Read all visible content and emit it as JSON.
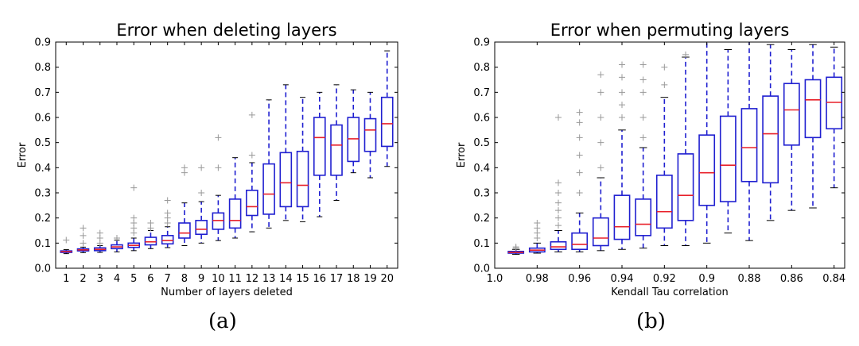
{
  "chart_data": [
    {
      "type": "box",
      "title": "Error when deleting layers",
      "xlabel": "Number of layers deleted",
      "ylabel": "Error",
      "ylim": [
        0.0,
        0.9
      ],
      "yticks": [
        "0.0",
        "0.1",
        "0.2",
        "0.3",
        "0.4",
        "0.5",
        "0.6",
        "0.7",
        "0.8",
        "0.9"
      ],
      "categories": [
        "1",
        "2",
        "3",
        "4",
        "5",
        "6",
        "7",
        "8",
        "9",
        "10",
        "11",
        "12",
        "13",
        "14",
        "15",
        "16",
        "17",
        "18",
        "19",
        "20"
      ],
      "colors": {
        "box": "#1f1fd0",
        "median": "#e8202a",
        "whisker": "#1f1fd0",
        "cap": "#000000",
        "flier": "#999999"
      },
      "boxes": [
        {
          "whislo": 0.058,
          "q1": 0.063,
          "med": 0.066,
          "q3": 0.069,
          "whishi": 0.074,
          "fliers": [
            0.112
          ]
        },
        {
          "whislo": 0.062,
          "q1": 0.069,
          "med": 0.073,
          "q3": 0.077,
          "whishi": 0.084,
          "fliers": [
            0.1,
            0.13,
            0.16
          ]
        },
        {
          "whislo": 0.063,
          "q1": 0.07,
          "med": 0.075,
          "q3": 0.081,
          "whishi": 0.09,
          "fliers": [
            0.1,
            0.12,
            0.14
          ]
        },
        {
          "whislo": 0.065,
          "q1": 0.078,
          "med": 0.085,
          "q3": 0.093,
          "whishi": 0.112,
          "fliers": [
            0.12
          ]
        },
        {
          "whislo": 0.07,
          "q1": 0.083,
          "med": 0.091,
          "q3": 0.1,
          "whishi": 0.12,
          "fliers": [
            0.14,
            0.16,
            0.18,
            0.2,
            0.32
          ]
        },
        {
          "whislo": 0.078,
          "q1": 0.093,
          "med": 0.105,
          "q3": 0.123,
          "whishi": 0.15,
          "fliers": [
            0.16,
            0.18
          ]
        },
        {
          "whislo": 0.082,
          "q1": 0.097,
          "med": 0.11,
          "q3": 0.13,
          "whishi": 0.165,
          "fliers": [
            0.18,
            0.2,
            0.22,
            0.27
          ]
        },
        {
          "whislo": 0.09,
          "q1": 0.12,
          "med": 0.14,
          "q3": 0.18,
          "whishi": 0.26,
          "fliers": [
            0.38,
            0.4
          ]
        },
        {
          "whislo": 0.1,
          "q1": 0.135,
          "med": 0.155,
          "q3": 0.19,
          "whishi": 0.265,
          "fliers": [
            0.3,
            0.4
          ]
        },
        {
          "whislo": 0.11,
          "q1": 0.155,
          "med": 0.19,
          "q3": 0.22,
          "whishi": 0.29,
          "fliers": [
            0.4,
            0.52
          ]
        },
        {
          "whislo": 0.12,
          "q1": 0.16,
          "med": 0.19,
          "q3": 0.275,
          "whishi": 0.44,
          "fliers": []
        },
        {
          "whislo": 0.145,
          "q1": 0.21,
          "med": 0.245,
          "q3": 0.31,
          "whishi": 0.42,
          "fliers": [
            0.45,
            0.61
          ]
        },
        {
          "whislo": 0.16,
          "q1": 0.215,
          "med": 0.295,
          "q3": 0.415,
          "whishi": 0.67,
          "fliers": []
        },
        {
          "whislo": 0.19,
          "q1": 0.245,
          "med": 0.34,
          "q3": 0.46,
          "whishi": 0.73,
          "fliers": []
        },
        {
          "whislo": 0.185,
          "q1": 0.245,
          "med": 0.33,
          "q3": 0.465,
          "whishi": 0.68,
          "fliers": []
        },
        {
          "whislo": 0.205,
          "q1": 0.37,
          "med": 0.52,
          "q3": 0.6,
          "whishi": 0.7,
          "fliers": []
        },
        {
          "whislo": 0.27,
          "q1": 0.37,
          "med": 0.49,
          "q3": 0.57,
          "whishi": 0.73,
          "fliers": []
        },
        {
          "whislo": 0.38,
          "q1": 0.425,
          "med": 0.515,
          "q3": 0.6,
          "whishi": 0.71,
          "fliers": []
        },
        {
          "whislo": 0.36,
          "q1": 0.465,
          "med": 0.55,
          "q3": 0.595,
          "whishi": 0.7,
          "fliers": []
        },
        {
          "whislo": 0.405,
          "q1": 0.485,
          "med": 0.575,
          "q3": 0.68,
          "whishi": 0.865,
          "fliers": []
        }
      ]
    },
    {
      "type": "box",
      "title": "Error when permuting layers",
      "xlabel": "Kendall Tau correlation",
      "ylabel": "Error",
      "ylim": [
        0.0,
        0.9
      ],
      "yticks": [
        "0.0",
        "0.1",
        "0.2",
        "0.3",
        "0.4",
        "0.5",
        "0.6",
        "0.7",
        "0.8",
        "0.9"
      ],
      "xlim": [
        1.0,
        0.835
      ],
      "xticks": [
        {
          "value": 1.0,
          "label": "1.0"
        },
        {
          "value": 0.98,
          "label": "0.98"
        },
        {
          "value": 0.96,
          "label": "0.96"
        },
        {
          "value": 0.94,
          "label": "0.94"
        },
        {
          "value": 0.92,
          "label": "0.92"
        },
        {
          "value": 0.9,
          "label": "0.9"
        },
        {
          "value": 0.88,
          "label": "0.88"
        },
        {
          "value": 0.86,
          "label": "0.86"
        },
        {
          "value": 0.84,
          "label": "0.84"
        }
      ],
      "colors": {
        "box": "#1f1fd0",
        "median": "#e8202a",
        "whisker": "#1f1fd0",
        "cap": "#000000",
        "flier": "#999999"
      },
      "boxes": [
        {
          "x": 0.99,
          "whislo": 0.055,
          "q1": 0.06,
          "med": 0.063,
          "q3": 0.067,
          "whishi": 0.075,
          "fliers": [
            0.08,
            0.085
          ]
        },
        {
          "x": 0.98,
          "whislo": 0.06,
          "q1": 0.065,
          "med": 0.072,
          "q3": 0.08,
          "whishi": 0.1,
          "fliers": [
            0.12,
            0.14,
            0.16,
            0.18
          ]
        },
        {
          "x": 0.97,
          "whislo": 0.065,
          "q1": 0.075,
          "med": 0.085,
          "q3": 0.105,
          "whishi": 0.15,
          "fliers": [
            0.17,
            0.2,
            0.23,
            0.26,
            0.3,
            0.34,
            0.6
          ]
        },
        {
          "x": 0.96,
          "whislo": 0.065,
          "q1": 0.075,
          "med": 0.095,
          "q3": 0.14,
          "whishi": 0.22,
          "fliers": [
            0.3,
            0.38,
            0.45,
            0.52,
            0.58,
            0.62
          ]
        },
        {
          "x": 0.95,
          "whislo": 0.07,
          "q1": 0.09,
          "med": 0.12,
          "q3": 0.2,
          "whishi": 0.36,
          "fliers": [
            0.4,
            0.5,
            0.6,
            0.7,
            0.77
          ]
        },
        {
          "x": 0.94,
          "whislo": 0.075,
          "q1": 0.115,
          "med": 0.165,
          "q3": 0.29,
          "whishi": 0.55,
          "fliers": [
            0.6,
            0.65,
            0.7,
            0.76,
            0.81
          ]
        },
        {
          "x": 0.93,
          "whislo": 0.08,
          "q1": 0.13,
          "med": 0.175,
          "q3": 0.275,
          "whishi": 0.48,
          "fliers": [
            0.52,
            0.6,
            0.7,
            0.75,
            0.81
          ]
        },
        {
          "x": 0.92,
          "whislo": 0.09,
          "q1": 0.16,
          "med": 0.225,
          "q3": 0.37,
          "whishi": 0.68,
          "fliers": [
            0.73,
            0.8
          ]
        },
        {
          "x": 0.91,
          "whislo": 0.09,
          "q1": 0.19,
          "med": 0.29,
          "q3": 0.455,
          "whishi": 0.84,
          "fliers": [
            0.85
          ]
        },
        {
          "x": 0.9,
          "whislo": 0.1,
          "q1": 0.25,
          "med": 0.38,
          "q3": 0.53,
          "whishi": 0.9,
          "fliers": []
        },
        {
          "x": 0.89,
          "whislo": 0.14,
          "q1": 0.265,
          "med": 0.41,
          "q3": 0.605,
          "whishi": 0.87,
          "fliers": []
        },
        {
          "x": 0.88,
          "whislo": 0.11,
          "q1": 0.345,
          "med": 0.48,
          "q3": 0.635,
          "whishi": 0.9,
          "fliers": []
        },
        {
          "x": 0.87,
          "whislo": 0.19,
          "q1": 0.34,
          "med": 0.535,
          "q3": 0.685,
          "whishi": 0.89,
          "fliers": []
        },
        {
          "x": 0.86,
          "whislo": 0.23,
          "q1": 0.49,
          "med": 0.63,
          "q3": 0.735,
          "whishi": 0.87,
          "fliers": []
        },
        {
          "x": 0.85,
          "whislo": 0.24,
          "q1": 0.52,
          "med": 0.67,
          "q3": 0.75,
          "whishi": 0.89,
          "fliers": []
        },
        {
          "x": 0.84,
          "whislo": 0.32,
          "q1": 0.555,
          "med": 0.66,
          "q3": 0.76,
          "whishi": 0.88,
          "fliers": []
        }
      ]
    }
  ],
  "captions": {
    "a": "(a)",
    "b": "(b)"
  }
}
